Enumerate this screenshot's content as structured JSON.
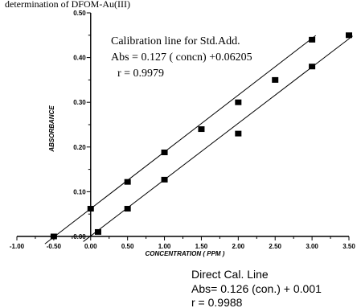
{
  "chart_data": {
    "type": "scatter",
    "title": "determination of DFOM-Au(III)",
    "xlabel": "CONCENTRATION ( PPM )",
    "ylabel": "ABSORBANCE",
    "xlim": [
      -1.0,
      3.5
    ],
    "ylim": [
      0.0,
      0.5
    ],
    "x_ticks": [
      "-1.00",
      "-0.50",
      "0.00",
      "0.50",
      "1.00",
      "1.50",
      "2.00",
      "2.50",
      "3.00",
      "3.50"
    ],
    "y_ticks": [
      "0.00",
      "0.10",
      "0.20",
      "0.30",
      "0.40",
      "0.50"
    ],
    "grid": false,
    "series": [
      {
        "x": [
          -0.5,
          0.0,
          0.5,
          1.0,
          1.5,
          2.0,
          2.5,
          3.0
        ],
        "y": [
          0.0,
          0.062,
          0.122,
          0.188,
          0.24,
          0.3,
          0.35,
          0.44
        ],
        "fit": {
          "slope": 0.127,
          "intercept": 0.06205
        }
      },
      {
        "x": [
          0.1,
          0.5,
          1.0,
          2.0,
          3.0,
          3.5
        ],
        "y": [
          0.01,
          0.062,
          0.127,
          0.23,
          0.38,
          0.45
        ],
        "fit": {
          "slope": 0.126,
          "intercept": 0.001
        }
      }
    ],
    "annotations": {
      "std_add": [
        "Calibration line for Std.Add.",
        "Abs = 0.127 ( concn) +0.06205",
        "r = 0.9979"
      ],
      "direct": [
        "Direct Cal. Line",
        "Abs= 0.126 (con.) + 0.001",
        "r = 0.9988"
      ]
    },
    "colors": {
      "marker": "#000000",
      "line": "#000000"
    }
  }
}
